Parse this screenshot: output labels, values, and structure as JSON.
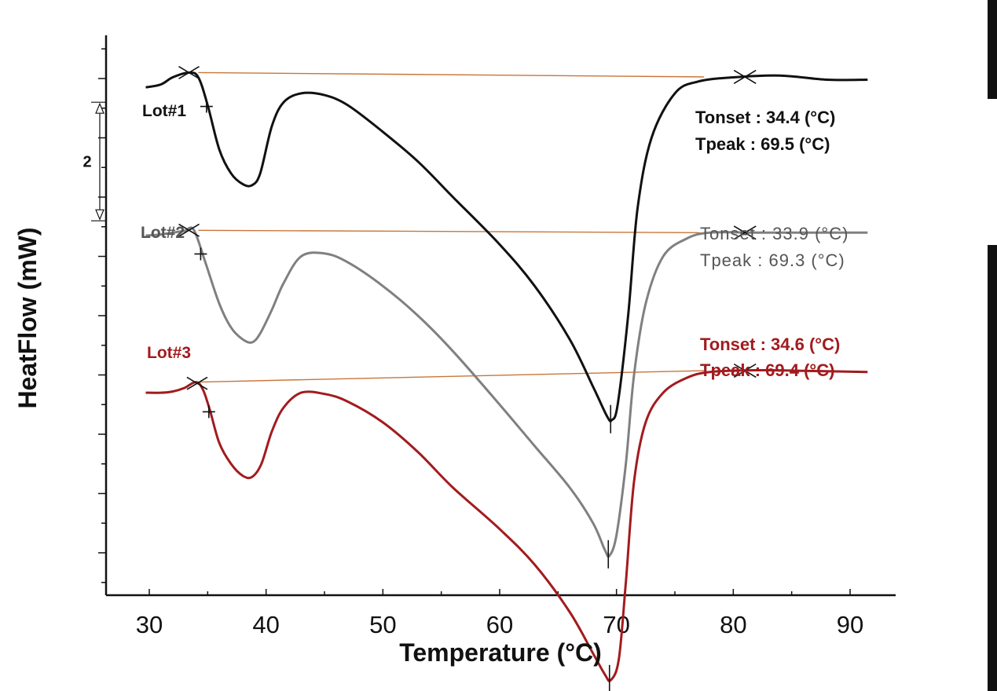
{
  "chart_data": {
    "type": "line",
    "xlabel": "Temperature (°C)",
    "ylabel": "HeatFlow (mW)",
    "xlim": [
      26,
      93
    ],
    "x_ticks": [
      30,
      40,
      50,
      60,
      70,
      80,
      90
    ],
    "scale_bar": {
      "label": "2",
      "value_mw": 2
    },
    "series": [
      {
        "name": "Lot#1",
        "color": "#111111",
        "label_color": "#111111",
        "onset": 34.4,
        "peak": 69.5,
        "annotation_style": "bold",
        "tonset_text": "Tonset :  34.4 (°C)",
        "tpeak_text": "Tpeak :  69.5 (°C)",
        "baseline_color": "#c8763a",
        "points": [
          [
            29.7,
            -0.15
          ],
          [
            31,
            -0.1
          ],
          [
            32,
            0.02
          ],
          [
            33.4,
            0.1
          ],
          [
            34.2,
            0.02
          ],
          [
            35,
            -0.45
          ],
          [
            36,
            -1.2
          ],
          [
            37,
            -1.6
          ],
          [
            38,
            -1.78
          ],
          [
            38.8,
            -1.8
          ],
          [
            39.5,
            -1.6
          ],
          [
            40.5,
            -0.8
          ],
          [
            41.5,
            -0.4
          ],
          [
            43,
            -0.25
          ],
          [
            45,
            -0.28
          ],
          [
            47,
            -0.45
          ],
          [
            50,
            -0.9
          ],
          [
            53,
            -1.4
          ],
          [
            56,
            -2.0
          ],
          [
            60,
            -2.8
          ],
          [
            63,
            -3.5
          ],
          [
            66,
            -4.4
          ],
          [
            68,
            -5.2
          ],
          [
            69.2,
            -5.7
          ],
          [
            69.6,
            -5.76
          ],
          [
            70.1,
            -5.5
          ],
          [
            71,
            -4.0
          ],
          [
            71.8,
            -2.2
          ],
          [
            73,
            -1.0
          ],
          [
            75,
            -0.25
          ],
          [
            77,
            -0.05
          ],
          [
            80,
            0.02
          ],
          [
            84,
            0.05
          ],
          [
            88,
            -0.02
          ],
          [
            91.5,
            -0.02
          ]
        ]
      },
      {
        "name": "Lot#2",
        "color": "#808080",
        "label_color": "#555555",
        "onset": 33.9,
        "peak": 69.3,
        "annotation_style": "light",
        "tonset_text": "Tonset :  33.9 (°C)",
        "tpeak_text": "Tpeak :  69.3 (°C)",
        "baseline_color": "#c8763a",
        "points": [
          [
            29.7,
            -2.65
          ],
          [
            31,
            -2.63
          ],
          [
            32,
            -2.6
          ],
          [
            33,
            -2.57
          ],
          [
            33.8,
            -2.55
          ],
          [
            34.8,
            -3.1
          ],
          [
            36,
            -3.8
          ],
          [
            37,
            -4.2
          ],
          [
            38,
            -4.4
          ],
          [
            38.8,
            -4.45
          ],
          [
            39.5,
            -4.3
          ],
          [
            40.5,
            -3.9
          ],
          [
            41.5,
            -3.45
          ],
          [
            43,
            -3.0
          ],
          [
            45,
            -2.95
          ],
          [
            47,
            -3.1
          ],
          [
            50,
            -3.5
          ],
          [
            53,
            -4.0
          ],
          [
            56,
            -4.6
          ],
          [
            60,
            -5.5
          ],
          [
            63,
            -6.2
          ],
          [
            66,
            -6.9
          ],
          [
            68,
            -7.5
          ],
          [
            69,
            -7.95
          ],
          [
            69.4,
            -8.05
          ],
          [
            70,
            -7.7
          ],
          [
            70.8,
            -6.5
          ],
          [
            71.5,
            -5.0
          ],
          [
            72.5,
            -3.8
          ],
          [
            74,
            -3.0
          ],
          [
            76,
            -2.7
          ],
          [
            78,
            -2.6
          ],
          [
            82,
            -2.6
          ],
          [
            86,
            -2.6
          ],
          [
            91.5,
            -2.6
          ]
        ]
      },
      {
        "name": "Lot#3",
        "color": "#a21b1e",
        "label_color": "#a21b1e",
        "onset": 34.6,
        "peak": 69.4,
        "annotation_style": "bold",
        "tonset_text": "Tonset :  34.6 (°C)",
        "tpeak_text": "Tpeak :  69.4 (°C)",
        "baseline_color": "#c8763a",
        "points": [
          [
            29.7,
            -5.3
          ],
          [
            31,
            -5.3
          ],
          [
            32,
            -5.28
          ],
          [
            33,
            -5.22
          ],
          [
            34,
            -5.12
          ],
          [
            34.6,
            -5.25
          ],
          [
            35.2,
            -5.6
          ],
          [
            36,
            -6.15
          ],
          [
            37,
            -6.5
          ],
          [
            38,
            -6.7
          ],
          [
            38.8,
            -6.72
          ],
          [
            39.6,
            -6.5
          ],
          [
            40.5,
            -5.95
          ],
          [
            41.5,
            -5.55
          ],
          [
            43,
            -5.3
          ],
          [
            45,
            -5.32
          ],
          [
            47,
            -5.45
          ],
          [
            50,
            -5.8
          ],
          [
            53,
            -6.3
          ],
          [
            56,
            -6.9
          ],
          [
            60,
            -7.6
          ],
          [
            63,
            -8.2
          ],
          [
            66,
            -9.0
          ],
          [
            68,
            -9.7
          ],
          [
            69,
            -10.05
          ],
          [
            69.5,
            -10.15
          ],
          [
            70.2,
            -9.8
          ],
          [
            70.8,
            -8.5
          ],
          [
            71.5,
            -6.8
          ],
          [
            72.5,
            -5.8
          ],
          [
            74,
            -5.3
          ],
          [
            76,
            -5.05
          ],
          [
            78,
            -4.95
          ],
          [
            82,
            -4.92
          ],
          [
            86,
            -4.93
          ],
          [
            91.5,
            -4.95
          ]
        ]
      }
    ]
  }
}
